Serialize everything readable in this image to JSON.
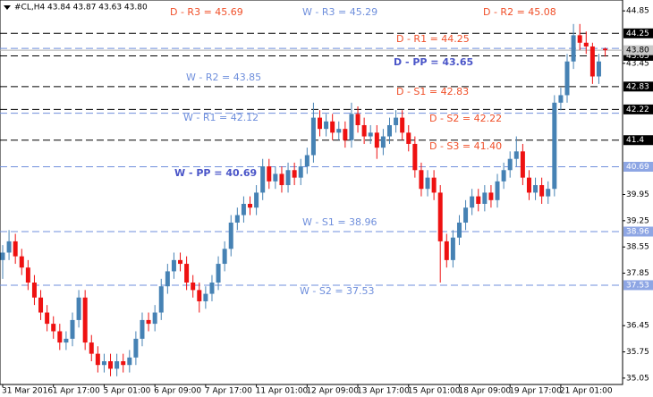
{
  "chart_data": {
    "type": "candlestick",
    "title": "#CL,H4  43.84 43.87 43.63 43.80",
    "categories": [
      "31 Mar 2016",
      null,
      null,
      null,
      null,
      null,
      null,
      null,
      "1 Apr 17:00",
      null,
      null,
      null,
      null,
      null,
      null,
      null,
      "5 Apr 01:00",
      null,
      null,
      null,
      null,
      null,
      null,
      null,
      "6 Apr 09:00",
      null,
      null,
      null,
      null,
      null,
      null,
      null,
      "7 Apr 17:00",
      null,
      null,
      null,
      null,
      null,
      null,
      null,
      "11 Apr 01:00",
      null,
      null,
      null,
      null,
      null,
      null,
      null,
      "12 Apr 09:00",
      null,
      null,
      null,
      null,
      null,
      null,
      null,
      "13 Apr 17:00",
      null,
      null,
      null,
      null,
      null,
      null,
      null,
      "15 Apr 01:00",
      null,
      null,
      null,
      null,
      null,
      null,
      null,
      "18 Apr 09:00",
      null,
      null,
      null,
      null,
      null,
      null,
      null,
      "19 Apr 17:00",
      null,
      null,
      null,
      null,
      null,
      null,
      null,
      "21 Apr 01:00",
      null,
      null,
      null,
      null,
      null,
      null,
      null
    ],
    "open": [
      38.2,
      38.4,
      38.7,
      38.3,
      38.0,
      37.6,
      37.2,
      36.8,
      36.5,
      36.3,
      36.0,
      36.1,
      36.6,
      37.2,
      36.0,
      35.7,
      35.4,
      35.5,
      35.3,
      35.5,
      35.4,
      35.6,
      36.1,
      36.6,
      36.5,
      36.8,
      37.5,
      37.9,
      38.2,
      38.1,
      37.6,
      37.4,
      37.1,
      37.3,
      37.6,
      38.1,
      38.5,
      39.2,
      39.4,
      39.7,
      39.6,
      40.0,
      40.7,
      40.3,
      40.5,
      40.2,
      40.6,
      40.4,
      40.7,
      41.0,
      42.0,
      41.7,
      41.9,
      41.6,
      41.7,
      41.4,
      42.1,
      41.8,
      41.5,
      41.6,
      41.2,
      41.5,
      41.8,
      42.0,
      41.6,
      41.3,
      40.6,
      40.1,
      40.4,
      40.0,
      38.7,
      38.2,
      38.8,
      39.2,
      39.6,
      39.9,
      39.7,
      40.0,
      39.8,
      40.3,
      40.6,
      40.9,
      41.1,
      40.4,
      40.0,
      40.2,
      39.9,
      40.1,
      42.4,
      42.6,
      43.5,
      44.2,
      44.0,
      43.9,
      43.1,
      43.84
    ],
    "high": [
      38.6,
      39.0,
      38.9,
      38.5,
      38.2,
      37.8,
      37.4,
      37.0,
      36.7,
      36.5,
      36.3,
      36.8,
      37.4,
      37.4,
      36.2,
      35.9,
      35.7,
      35.7,
      35.7,
      35.7,
      35.8,
      36.3,
      36.8,
      36.8,
      37.0,
      37.7,
      38.1,
      38.4,
      38.4,
      38.3,
      37.8,
      37.6,
      37.5,
      37.8,
      38.3,
      38.7,
      39.4,
      39.6,
      39.9,
      39.9,
      40.2,
      40.9,
      40.9,
      40.7,
      40.7,
      40.8,
      40.8,
      40.9,
      41.2,
      42.4,
      42.2,
      42.1,
      42.1,
      41.9,
      41.9,
      42.4,
      42.3,
      42.0,
      41.8,
      41.8,
      41.7,
      42.0,
      42.2,
      42.2,
      41.8,
      41.5,
      40.8,
      40.6,
      40.6,
      40.2,
      38.9,
      39.0,
      39.4,
      39.8,
      40.1,
      40.1,
      40.2,
      40.2,
      40.5,
      40.8,
      41.1,
      41.5,
      41.3,
      40.6,
      40.4,
      40.4,
      40.3,
      42.6,
      42.8,
      43.7,
      44.5,
      44.5,
      44.3,
      44.0,
      43.7,
      43.87
    ],
    "low": [
      37.7,
      38.2,
      38.1,
      37.8,
      37.4,
      37.0,
      36.6,
      36.3,
      36.1,
      35.8,
      35.8,
      35.9,
      36.4,
      35.8,
      35.5,
      35.2,
      35.2,
      35.1,
      35.1,
      35.2,
      35.2,
      35.4,
      35.9,
      36.3,
      36.3,
      36.6,
      37.3,
      37.7,
      37.9,
      37.4,
      37.2,
      36.8,
      36.9,
      37.1,
      37.4,
      37.9,
      38.3,
      39.0,
      39.2,
      39.4,
      39.4,
      39.8,
      40.1,
      40.1,
      40.0,
      40.0,
      40.2,
      40.2,
      40.5,
      40.8,
      41.5,
      41.5,
      41.4,
      41.4,
      41.2,
      41.2,
      41.6,
      41.3,
      41.3,
      40.9,
      41.0,
      41.3,
      41.6,
      41.4,
      41.1,
      40.4,
      39.9,
      39.9,
      39.8,
      37.6,
      38.0,
      38.0,
      38.6,
      39.0,
      39.4,
      39.5,
      39.5,
      39.6,
      39.6,
      40.1,
      40.4,
      40.7,
      40.2,
      39.8,
      39.8,
      39.7,
      39.7,
      39.9,
      42.2,
      42.4,
      43.3,
      43.8,
      43.7,
      42.9,
      42.9,
      43.63
    ],
    "close": [
      38.4,
      38.7,
      38.3,
      38.0,
      37.6,
      37.2,
      36.8,
      36.5,
      36.3,
      36.0,
      36.1,
      36.6,
      37.2,
      36.0,
      35.7,
      35.4,
      35.5,
      35.3,
      35.5,
      35.4,
      35.6,
      36.1,
      36.6,
      36.5,
      36.8,
      37.5,
      37.9,
      38.2,
      38.1,
      37.6,
      37.4,
      37.1,
      37.3,
      37.6,
      38.1,
      38.5,
      39.2,
      39.4,
      39.7,
      39.6,
      40.0,
      40.7,
      40.3,
      40.5,
      40.2,
      40.6,
      40.4,
      40.7,
      41.0,
      42.0,
      41.7,
      41.9,
      41.6,
      41.7,
      41.4,
      42.1,
      41.8,
      41.5,
      41.6,
      41.2,
      41.5,
      41.8,
      42.0,
      41.6,
      41.3,
      40.6,
      40.1,
      40.4,
      40.0,
      38.7,
      38.2,
      38.8,
      39.2,
      39.6,
      39.9,
      39.7,
      40.0,
      39.8,
      40.3,
      40.6,
      40.9,
      41.1,
      40.4,
      40.0,
      40.2,
      39.9,
      40.1,
      42.4,
      42.6,
      43.5,
      44.2,
      44.0,
      43.9,
      43.1,
      43.5,
      43.8
    ],
    "up_color": "#4682b4",
    "down_color": "#ee1111",
    "ylim": [
      34.88,
      45.14
    ],
    "yticks": [
      44.85,
      43.45,
      39.95,
      39.25,
      38.55,
      37.85,
      36.45,
      35.75,
      35.05
    ],
    "last_price": {
      "value": 43.8,
      "label": "43.80"
    },
    "levels": [
      {
        "label": "D - R3 = 45.69",
        "value": 45.69,
        "color": "#f0502a"
      },
      {
        "label": "W - R3 = 45.29",
        "value": 45.29,
        "color": "#6f8fdc"
      },
      {
        "label": "D - R2 = 45.08",
        "value": 45.08,
        "color": "#f0502a"
      },
      {
        "label": "D - R1 = 44.25",
        "value": 44.25,
        "color": "#f0502a",
        "line_color": "#000000",
        "tag_color": "#000000"
      },
      {
        "label": "W - R2 = 43.85",
        "value": 43.85,
        "color": "#6f8fdc",
        "line_color": "#6f8fdc"
      },
      {
        "label": "D - PP = 43.65",
        "value": 43.65,
        "color": "#4a55c8",
        "line_color": "#000000",
        "tag_color": "#000000"
      },
      {
        "label": "D - S1 = 42.83",
        "value": 42.83,
        "color": "#f0502a",
        "line_color": "#000000",
        "tag_color": "#000000"
      },
      {
        "label": "W - R1 = 42.12",
        "value": 42.12,
        "color": "#6f8fdc",
        "line_color": "#6f8fdc"
      },
      {
        "label": "D - S2 = 42.22",
        "value": 42.22,
        "color": "#f0502a",
        "line_color": "#000000",
        "tag_color": "#000000"
      },
      {
        "label": "D - S3 = 41.40",
        "value": 41.4,
        "color": "#f0502a",
        "line_color": "#000000",
        "tag_color": "#000000"
      },
      {
        "label": "W - PP = 40.69",
        "value": 40.69,
        "color": "#4a55c8",
        "line_color": "#6f8fdc",
        "tag_color": "#8ea6e4"
      },
      {
        "label": "W - S1 = 38.96",
        "value": 38.96,
        "color": "#6f8fdc",
        "line_color": "#6f8fdc",
        "tag_color": "#8ea6e4"
      },
      {
        "label": "W - S2 = 37.53",
        "value": 37.53,
        "color": "#6f8fdc",
        "line_color": "#6f8fdc",
        "tag_color": "#8ea6e4"
      }
    ]
  }
}
